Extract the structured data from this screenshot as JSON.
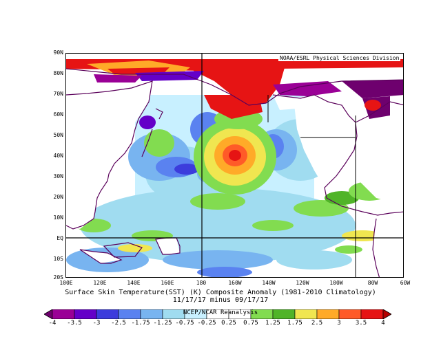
{
  "map": {
    "source": "NOAA/ESRL Physical Sciences Division",
    "lat_labels": [
      "90N",
      "80N",
      "70N",
      "60N",
      "50N",
      "40N",
      "30N",
      "20N",
      "10N",
      "EQ",
      "10S",
      "20S"
    ],
    "lon_labels": [
      "100E",
      "120E",
      "140E",
      "160E",
      "180",
      "160W",
      "140W",
      "120W",
      "100W",
      "80W",
      "60W"
    ],
    "title_line1": "Surface Skin Temperature(SST) (K) Composite Anomaly (1981-2010 Climatology)",
    "title_line2": "11/17/17 minus 09/17/17",
    "colorbar_credit": "NCEP/NCAR Reanalysis",
    "colorbar_ticks": [
      "-4",
      "-3.5",
      "-3",
      "-2.5",
      "-1.75",
      "-1.25",
      "-0.75",
      "-0.25",
      "0.25",
      "0.75",
      "1.25",
      "1.75",
      "2.5",
      "3",
      "3.5",
      "4"
    ],
    "colorbar_colors": [
      "#6e006e",
      "#9a0096",
      "#6400c8",
      "#3c3cdc",
      "#5a82f0",
      "#78b4f0",
      "#a0dcf0",
      "#c8f0ff",
      "#ffffff",
      "#ffffff",
      "#82dc50",
      "#50b428",
      "#f0e650",
      "#ffaa28",
      "#ff5a28",
      "#e61414",
      "#b40000"
    ]
  }
}
